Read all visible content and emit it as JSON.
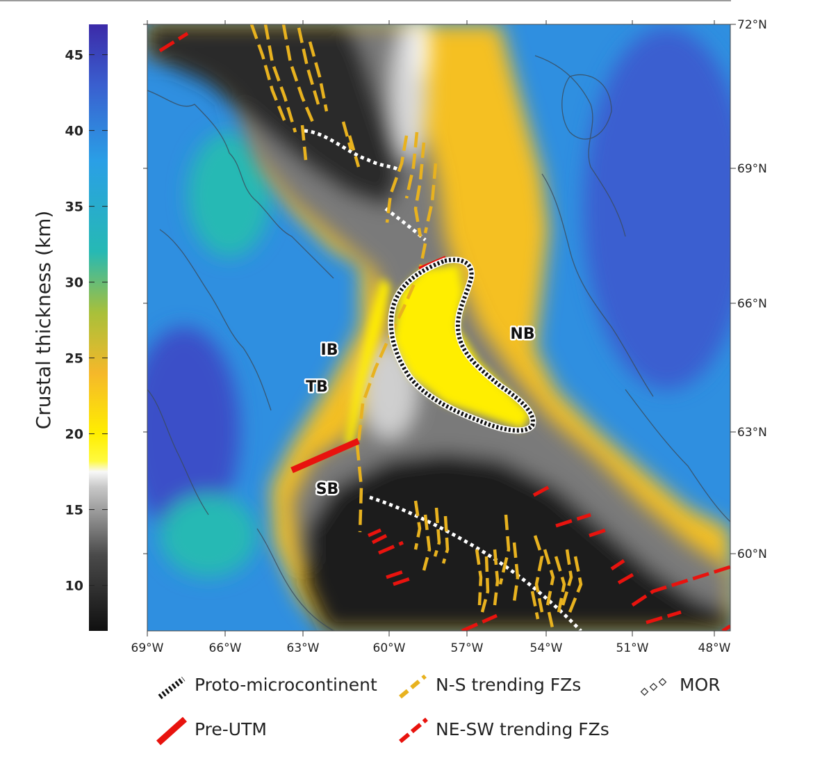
{
  "colorbar": {
    "title": "Crustal thickness (km)",
    "min": 7,
    "max": 47,
    "ticks": [
      10,
      15,
      20,
      25,
      30,
      35,
      40,
      45
    ],
    "stops": [
      {
        "v": 7,
        "c": "#101010"
      },
      {
        "v": 12,
        "c": "#4a4a4a"
      },
      {
        "v": 16.5,
        "c": "#c8c8c8"
      },
      {
        "v": 17.5,
        "c": "#f8f8f8"
      },
      {
        "v": 18.2,
        "c": "#fffa40"
      },
      {
        "v": 20,
        "c": "#ffee00"
      },
      {
        "v": 24,
        "c": "#f5b82a"
      },
      {
        "v": 28,
        "c": "#a8c03a"
      },
      {
        "v": 32,
        "c": "#26b9b4"
      },
      {
        "v": 38,
        "c": "#2a9fe6"
      },
      {
        "v": 43,
        "c": "#3a5fcf"
      },
      {
        "v": 47,
        "c": "#3b2aa8"
      }
    ]
  },
  "map": {
    "lon_ticks": [
      "69°W",
      "66°W",
      "63°W",
      "60°W",
      "57°W",
      "54°W",
      "51°W",
      "48°W"
    ],
    "lat_ticks": [
      "72°N",
      "69°N",
      "66°N",
      "63°N",
      "60°N"
    ],
    "region_labels": [
      "IB",
      "TB",
      "SB",
      "NB"
    ]
  },
  "legend": {
    "proto": "Proto-microcontinent",
    "ns_fz": "N-S trending FZs",
    "mor": "MOR",
    "pre_utm": "Pre-UTM",
    "nesw_fz": "NE-SW trending FZs"
  },
  "colors": {
    "pre_utm": "#e8130e",
    "ns_fz": "#e8b21f",
    "nesw_fz": "#e8130e",
    "mor": "#ffffff",
    "proto": "#111111"
  }
}
